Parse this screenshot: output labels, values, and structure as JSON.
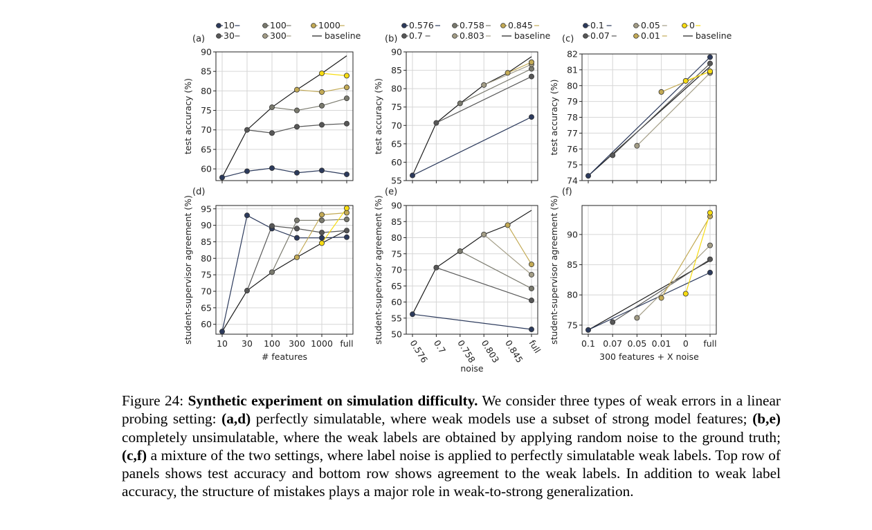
{
  "colors": {
    "baseline": "#1a1a1a",
    "grid": "#d6d6d6",
    "palette_a": [
      "#2c3a5c",
      "#575757",
      "#7a7a6e",
      "#a39d86",
      "#c3aa55",
      "#f7dc12"
    ],
    "palette_b": [
      "#2c3a5c",
      "#575757",
      "#7a7a6e",
      "#a39d86",
      "#c3aa55"
    ],
    "palette_c": [
      "#2c3a5c",
      "#575757",
      "#a39d86",
      "#c3aa55",
      "#f7dc12"
    ]
  },
  "legends": {
    "a": {
      "entries": [
        "10",
        "30",
        "100",
        "300",
        "1000",
        "baseline"
      ]
    },
    "b": {
      "entries": [
        "0.576",
        "0.7",
        "0.758",
        "0.803",
        "0.845",
        "baseline"
      ]
    },
    "c": {
      "entries": [
        "0.1",
        "0.07",
        "0.05",
        "0.01",
        "0",
        "baseline"
      ]
    }
  },
  "chart_data": [
    {
      "panel": "a",
      "type": "line",
      "xlabel": "",
      "ylabel": "test accuracy (%)",
      "categories": [
        "10",
        "30",
        "100",
        "300",
        "1000",
        "full"
      ],
      "show_xticklabels": false,
      "ylim": [
        57,
        90
      ],
      "yticks": [
        60,
        65,
        70,
        75,
        80,
        85,
        90
      ],
      "baseline": {
        "name": "baseline",
        "values": [
          57.8,
          70,
          75.8,
          80.3,
          84.5,
          89
        ]
      },
      "series": [
        {
          "name": "10",
          "values": [
            57.8,
            59.4,
            60.2,
            59,
            59.6,
            58.6
          ]
        },
        {
          "name": "30",
          "values": [
            null,
            70,
            69.2,
            70.8,
            71.3,
            71.6
          ]
        },
        {
          "name": "100",
          "values": [
            null,
            null,
            75.8,
            75,
            76.2,
            78.1
          ]
        },
        {
          "name": "300",
          "values": [
            null,
            null,
            null,
            80.3,
            79.7,
            80.9
          ]
        },
        {
          "name": "1000",
          "values": [
            null,
            null,
            null,
            null,
            84.5,
            83.9
          ]
        }
      ]
    },
    {
      "panel": "b",
      "type": "line",
      "xlabel": "",
      "ylabel": "test accuracy (%)",
      "categories": [
        "0.576",
        "0.7",
        "0.758",
        "0.803",
        "0.845",
        "full"
      ],
      "show_xticklabels": false,
      "ylim": [
        55,
        90
      ],
      "yticks": [
        55,
        60,
        65,
        70,
        75,
        80,
        85,
        90
      ],
      "baseline": {
        "name": "baseline",
        "values": [
          56.4,
          70.7,
          76,
          81,
          84.3,
          88.7
        ]
      },
      "series": [
        {
          "name": "0.576",
          "values": [
            56.4,
            null,
            null,
            null,
            null,
            72.3
          ]
        },
        {
          "name": "0.7",
          "values": [
            null,
            70.7,
            null,
            null,
            null,
            83.3
          ]
        },
        {
          "name": "0.758",
          "values": [
            null,
            null,
            76,
            null,
            null,
            85.4
          ]
        },
        {
          "name": "0.803",
          "values": [
            null,
            null,
            null,
            81,
            null,
            86.6
          ]
        },
        {
          "name": "0.845",
          "values": [
            null,
            null,
            null,
            null,
            84.3,
            87.2
          ]
        }
      ]
    },
    {
      "panel": "c",
      "type": "line",
      "xlabel": "",
      "ylabel": "test accuracy (%)",
      "categories": [
        "0.1",
        "0.07",
        "0.05",
        "0.01",
        "0",
        "full"
      ],
      "show_xticklabels": false,
      "ylim": [
        74,
        82
      ],
      "yticks": [
        74,
        75,
        76,
        77,
        78,
        79,
        80,
        81,
        82
      ],
      "baseline": {
        "name": "baseline",
        "values": [
          74.3,
          null,
          null,
          null,
          null,
          81.2
        ]
      },
      "series": [
        {
          "name": "0.1",
          "values": [
            74.3,
            null,
            null,
            null,
            null,
            81.8
          ]
        },
        {
          "name": "0.07",
          "values": [
            null,
            75.6,
            null,
            null,
            null,
            81.4
          ]
        },
        {
          "name": "0.05",
          "values": [
            null,
            null,
            76.2,
            null,
            null,
            80.8
          ]
        },
        {
          "name": "0.01",
          "values": [
            null,
            null,
            null,
            79.6,
            null,
            80.9
          ]
        },
        {
          "name": "0",
          "values": [
            null,
            null,
            null,
            null,
            80.3,
            80.9
          ]
        }
      ]
    },
    {
      "panel": "d",
      "type": "line",
      "xlabel": "# features",
      "ylabel": "student-supervisor agreement (%)",
      "categories": [
        "10",
        "30",
        "100",
        "300",
        "1000",
        "full"
      ],
      "show_xticklabels": true,
      "ylim": [
        57,
        96
      ],
      "yticks": [
        60,
        65,
        70,
        75,
        80,
        85,
        90,
        95
      ],
      "baseline": {
        "name": "baseline",
        "values": [
          57.8,
          70.2,
          75.8,
          80.3,
          84.6,
          88.5
        ]
      },
      "series": [
        {
          "name": "10",
          "values": [
            57.8,
            93,
            89,
            86.2,
            86.2,
            86.4
          ]
        },
        {
          "name": "30",
          "values": [
            null,
            70.2,
            89.8,
            89,
            87.8,
            88.4
          ]
        },
        {
          "name": "100",
          "values": [
            null,
            null,
            75.8,
            91.5,
            91.5,
            91.8
          ]
        },
        {
          "name": "300",
          "values": [
            null,
            null,
            null,
            80.3,
            93.2,
            93.8
          ]
        },
        {
          "name": "1000",
          "values": [
            null,
            null,
            null,
            null,
            84.6,
            95.2
          ]
        }
      ]
    },
    {
      "panel": "e",
      "type": "line",
      "xlabel": "noise",
      "ylabel": "student-supervisor agreement (%)",
      "categories": [
        "0.576",
        "0.7",
        "0.758",
        "0.803",
        "0.845",
        "full"
      ],
      "show_xticklabels": true,
      "rotate_xticklabels": true,
      "ylim": [
        50,
        90
      ],
      "yticks": [
        50,
        55,
        60,
        65,
        70,
        75,
        80,
        85,
        90
      ],
      "baseline": {
        "name": "baseline",
        "values": [
          56.2,
          70.7,
          75.8,
          81,
          83.9,
          88.5
        ]
      },
      "series": [
        {
          "name": "0.576",
          "values": [
            56.2,
            null,
            null,
            null,
            null,
            51.5
          ]
        },
        {
          "name": "0.7",
          "values": [
            null,
            70.7,
            null,
            null,
            null,
            60.5
          ]
        },
        {
          "name": "0.758",
          "values": [
            null,
            null,
            75.8,
            null,
            null,
            64.2
          ]
        },
        {
          "name": "0.803",
          "values": [
            null,
            null,
            null,
            81,
            null,
            68.5
          ]
        },
        {
          "name": "0.845",
          "values": [
            null,
            null,
            null,
            null,
            83.9,
            71.7
          ]
        }
      ]
    },
    {
      "panel": "f",
      "type": "line",
      "xlabel": "300 features + X noise",
      "ylabel": "student-supervisor agreement (%)",
      "categories": [
        "0.1",
        "0.07",
        "0.05",
        "0.01",
        "0",
        "full"
      ],
      "show_xticklabels": true,
      "ylim": [
        73.5,
        94.8
      ],
      "yticks": [
        75,
        80,
        85,
        90
      ],
      "baseline": {
        "name": "baseline",
        "values": [
          74.2,
          null,
          null,
          null,
          null,
          85.7
        ]
      },
      "series": [
        {
          "name": "0.1",
          "values": [
            74.2,
            null,
            null,
            null,
            null,
            83.7
          ]
        },
        {
          "name": "0.07",
          "values": [
            null,
            75.5,
            null,
            null,
            null,
            85.9
          ]
        },
        {
          "name": "0.05",
          "values": [
            null,
            null,
            76.2,
            null,
            null,
            88.2
          ]
        },
        {
          "name": "0.01",
          "values": [
            null,
            null,
            null,
            79.5,
            null,
            93
          ]
        },
        {
          "name": "0",
          "values": [
            null,
            null,
            null,
            null,
            80.2,
            93.6
          ]
        }
      ]
    }
  ],
  "caption": {
    "label": "Figure 24:",
    "title": "Synthetic experiment on simulation difficulty.",
    "text1": " We consider three types of weak errors in a linear probing setting: ",
    "ad": "(a,d)",
    "text2": " perfectly simulatable, where weak models use a subset of strong model features; ",
    "be": "(b,e)",
    "text3": " completely unsimulatable, where the weak labels are obtained by applying random noise to the ground truth; ",
    "cf": "(c,f)",
    "text4": " a mixture of the two settings, where label noise is applied to perfectly simulatable weak labels. Top row of panels shows test accuracy and bottom row shows agreement to the weak labels. In addition to weak label accuracy, the structure of mistakes plays a major role in weak-to-strong generalization."
  }
}
